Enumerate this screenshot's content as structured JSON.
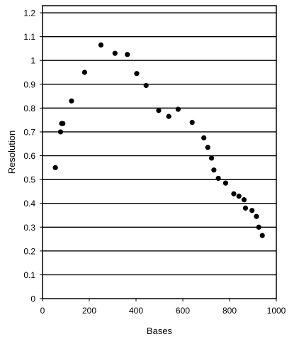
{
  "chart_data": {
    "type": "scatter",
    "title": "",
    "xlabel": "Bases",
    "ylabel": "Resolution",
    "xlim": [
      0,
      1000
    ],
    "ylim": [
      0,
      1.23
    ],
    "xticks": [
      0,
      200,
      400,
      600,
      800,
      1000
    ],
    "yticks": [
      0,
      0.1,
      0.2,
      0.3,
      0.4,
      0.5,
      0.6,
      0.7,
      0.8,
      0.9,
      1,
      1.1,
      1.2
    ],
    "ytick_labels": [
      "0",
      "0.1",
      "0.2",
      "0.3",
      "0.4",
      "0.5",
      "0.6",
      "0.7",
      "0.8",
      "0.9",
      "1",
      "1.1",
      "1.2"
    ],
    "grid_y": true,
    "grid_x": false,
    "marker_color": "#000000",
    "series": [
      {
        "points": [
          {
            "x": 55,
            "y": 0.55
          },
          {
            "x": 77,
            "y": 0.7
          },
          {
            "x": 82,
            "y": 0.735
          },
          {
            "x": 87,
            "y": 0.735
          },
          {
            "x": 124,
            "y": 0.83
          },
          {
            "x": 180,
            "y": 0.95
          },
          {
            "x": 250,
            "y": 1.065
          },
          {
            "x": 310,
            "y": 1.03
          },
          {
            "x": 363,
            "y": 1.025
          },
          {
            "x": 403,
            "y": 0.945
          },
          {
            "x": 443,
            "y": 0.895
          },
          {
            "x": 497,
            "y": 0.79
          },
          {
            "x": 540,
            "y": 0.765
          },
          {
            "x": 580,
            "y": 0.795
          },
          {
            "x": 640,
            "y": 0.74
          },
          {
            "x": 690,
            "y": 0.675
          },
          {
            "x": 707,
            "y": 0.635
          },
          {
            "x": 723,
            "y": 0.59
          },
          {
            "x": 733,
            "y": 0.54
          },
          {
            "x": 752,
            "y": 0.505
          },
          {
            "x": 783,
            "y": 0.485
          },
          {
            "x": 818,
            "y": 0.44
          },
          {
            "x": 840,
            "y": 0.43
          },
          {
            "x": 862,
            "y": 0.415
          },
          {
            "x": 868,
            "y": 0.38
          },
          {
            "x": 896,
            "y": 0.37
          },
          {
            "x": 915,
            "y": 0.345
          },
          {
            "x": 925,
            "y": 0.3
          },
          {
            "x": 940,
            "y": 0.265
          }
        ]
      }
    ]
  }
}
